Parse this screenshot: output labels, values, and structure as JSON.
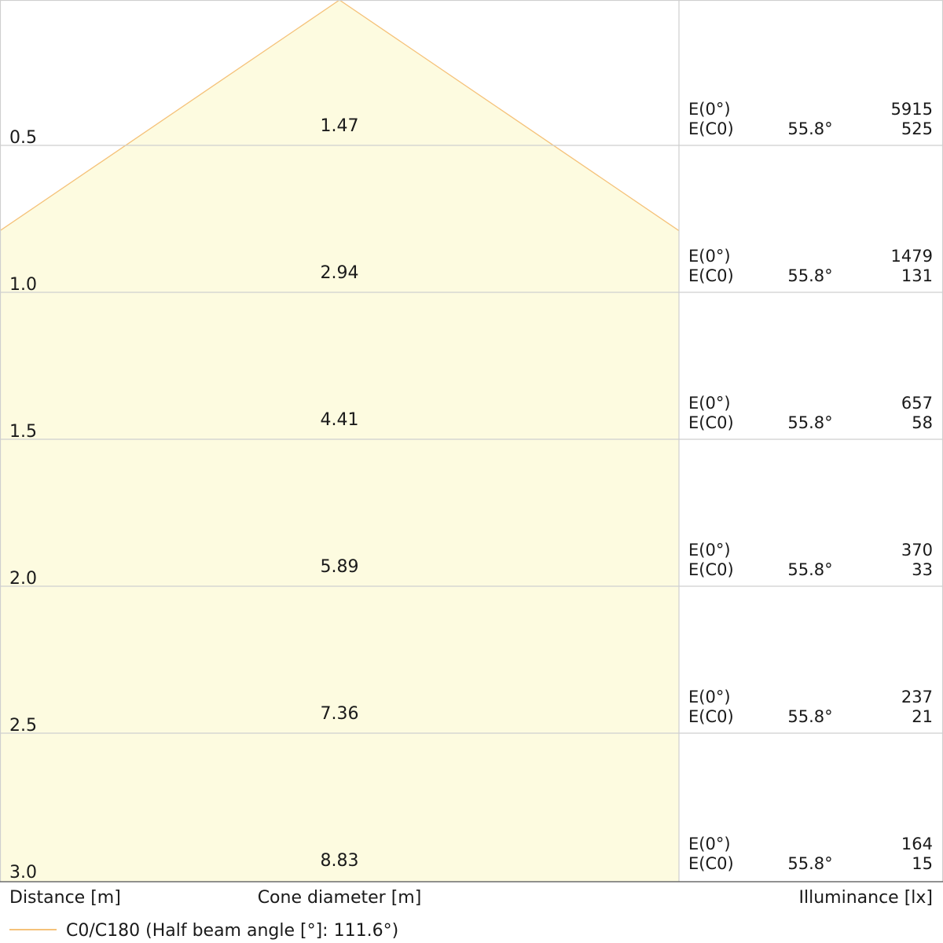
{
  "chart_data": {
    "type": "area",
    "x_axis_label": "Distance [m]",
    "cone_axis_label": "Cone diameter [m]",
    "illuminance_axis_label": "Illuminance [lx]",
    "legend": {
      "label": "C0/C180 (Half beam angle [°]: 111.6°)",
      "color": "#f5c27a"
    },
    "colors": {
      "cone_fill": "#fdfbe0",
      "cone_edge": "#f5c27a",
      "grid": "#cfcfcf"
    },
    "half_beam_angle_deg": 111.6,
    "rows": [
      {
        "distance": "0.5",
        "cone_diameter": "1.47",
        "e0_label": "E(0°)",
        "ec0_label": "E(C0)",
        "angle": "55.8°",
        "e0": "5915",
        "ec0": "525"
      },
      {
        "distance": "1.0",
        "cone_diameter": "2.94",
        "e0_label": "E(0°)",
        "ec0_label": "E(C0)",
        "angle": "55.8°",
        "e0": "1479",
        "ec0": "131"
      },
      {
        "distance": "1.5",
        "cone_diameter": "4.41",
        "e0_label": "E(0°)",
        "ec0_label": "E(C0)",
        "angle": "55.8°",
        "e0": "657",
        "ec0": "58"
      },
      {
        "distance": "2.0",
        "cone_diameter": "5.89",
        "e0_label": "E(0°)",
        "ec0_label": "E(C0)",
        "angle": "55.8°",
        "e0": "370",
        "ec0": "33"
      },
      {
        "distance": "2.5",
        "cone_diameter": "7.36",
        "e0_label": "E(0°)",
        "ec0_label": "E(C0)",
        "angle": "55.8°",
        "e0": "237",
        "ec0": "21"
      },
      {
        "distance": "3.0",
        "cone_diameter": "8.83",
        "e0_label": "E(0°)",
        "ec0_label": "E(C0)",
        "angle": "55.8°",
        "e0": "164",
        "ec0": "15"
      }
    ]
  }
}
